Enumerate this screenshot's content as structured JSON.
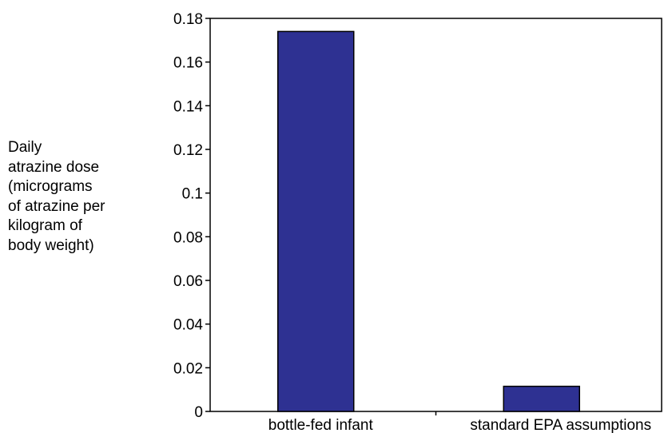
{
  "chart_data": {
    "type": "bar",
    "title": "",
    "xlabel": "",
    "ylabel_lines": [
      "Daily",
      "atrazine dose",
      "(micrograms",
      "of atrazine per",
      "kilogram of",
      "body weight)"
    ],
    "categories": [
      "bottle-fed infant",
      "standard EPA assumptions"
    ],
    "values": [
      0.174,
      0.0115
    ],
    "ylim": [
      0,
      0.18
    ],
    "yticks": [
      0,
      0.02,
      0.04,
      0.06,
      0.08,
      0.1,
      0.12,
      0.14,
      0.16,
      0.18
    ],
    "ytick_labels": [
      "0",
      "0.02",
      "0.04",
      "0.06",
      "0.08",
      "0.1",
      "0.12",
      "0.14",
      "0.16",
      "0.18"
    ],
    "grid": false,
    "legend": "none",
    "bar_color": "#2e3192",
    "bar_edge_color": "#000000"
  }
}
